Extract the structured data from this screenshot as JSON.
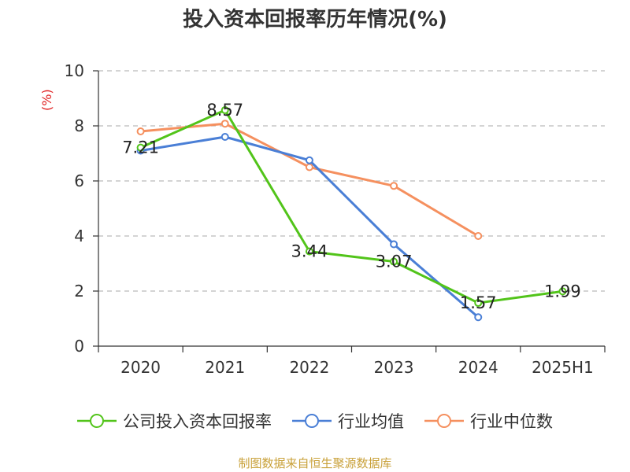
{
  "title": "投入资本回报率历年情况(%)",
  "ylabel": "(%)",
  "footer": "制图数据来自恒生聚源数据库",
  "colors": {
    "company": "#52c41a",
    "industry_avg": "#4a7fd6",
    "industry_median": "#f5905f",
    "axis": "#333333",
    "grid": "#bbbbbb",
    "ylabel": "#e01e1e",
    "footer": "#c9a13a"
  },
  "chart_data": {
    "type": "line",
    "categories": [
      "2020",
      "2021",
      "2022",
      "2023",
      "2024",
      "2025H1"
    ],
    "ylim": [
      0,
      10
    ],
    "yticks": [
      0,
      2,
      4,
      6,
      8,
      10
    ],
    "grid": true,
    "legend_position": "bottom",
    "series": [
      {
        "name": "公司投入资本回报率",
        "key": "company",
        "values": [
          7.21,
          8.57,
          3.44,
          3.07,
          1.57,
          1.99
        ],
        "labels": [
          "7.21",
          "8.57",
          "3.44",
          "3.07",
          "1.57",
          "1.99"
        ]
      },
      {
        "name": "行业均值",
        "key": "industry_avg",
        "values": [
          7.1,
          7.6,
          6.75,
          3.7,
          1.05,
          null
        ]
      },
      {
        "name": "行业中位数",
        "key": "industry_median",
        "values": [
          7.8,
          8.08,
          6.5,
          5.82,
          4.0,
          null
        ]
      }
    ]
  }
}
